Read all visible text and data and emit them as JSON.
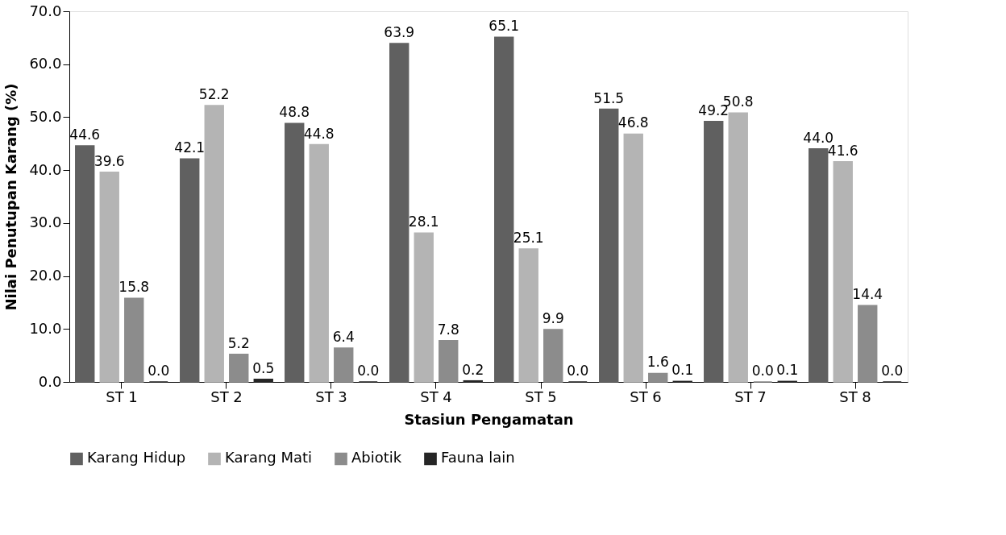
{
  "chart_data": {
    "type": "bar",
    "xlabel": "Stasiun Pengamatan",
    "ylabel": "Nilai Penutupan Karang (%)",
    "categories": [
      "ST 1",
      "ST 2",
      "ST 3",
      "ST 4",
      "ST 5",
      "ST 6",
      "ST 7",
      "ST 8"
    ],
    "series": [
      {
        "name": "Karang Hidup",
        "color": "#606060",
        "values": [
          44.6,
          42.1,
          48.8,
          63.9,
          65.1,
          51.5,
          49.2,
          44.0
        ],
        "value_labels": [
          "44.6",
          "42.1",
          "48.8",
          "63.9",
          "65.1",
          "51.5",
          "49.2",
          "44.0"
        ]
      },
      {
        "name": "Karang Mati",
        "color": "#b4b4b4",
        "values": [
          39.6,
          52.2,
          44.8,
          28.1,
          25.1,
          46.8,
          50.8,
          41.6
        ],
        "value_labels": [
          "39.6",
          "52.2",
          "44.8",
          "28.1",
          "25.1",
          "46.8",
          "50.8",
          "41.6"
        ]
      },
      {
        "name": "Abiotik",
        "color": "#8c8c8c",
        "values": [
          15.8,
          5.2,
          6.4,
          7.8,
          9.9,
          1.6,
          0.0,
          14.4
        ],
        "value_labels": [
          "15.8",
          "5.2",
          "6.4",
          "7.8",
          "9.9",
          "1.6",
          "0.0",
          "14.4"
        ]
      },
      {
        "name": "Fauna lain",
        "color": "#262626",
        "values": [
          0.0,
          0.5,
          0.0,
          0.2,
          0.0,
          0.1,
          0.1,
          0.0
        ],
        "value_labels": [
          "0.0",
          "0.5",
          "0.0",
          "0.2",
          "0.0",
          "0.1",
          "0.1",
          "0.0"
        ]
      }
    ],
    "ylim": [
      0,
      70
    ],
    "yticks": [
      {
        "value": 0,
        "label": "0.0"
      },
      {
        "value": 10,
        "label": "10.0"
      },
      {
        "value": 20,
        "label": "20.0"
      },
      {
        "value": 30,
        "label": "30.0"
      },
      {
        "value": 40,
        "label": "40.0"
      },
      {
        "value": 50,
        "label": "50.0"
      },
      {
        "value": 60,
        "label": "60.0"
      },
      {
        "value": 70,
        "label": "70.0"
      }
    ],
    "grid": false,
    "legend": "bottom"
  }
}
